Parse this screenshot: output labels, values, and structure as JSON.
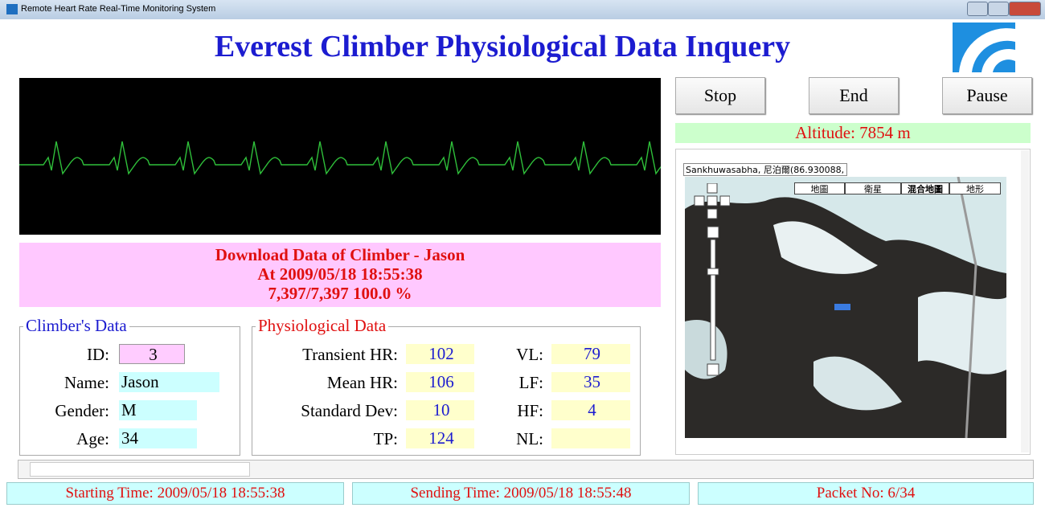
{
  "window": {
    "title": "Remote Heart Rate Real-Time Monitoring System"
  },
  "header": {
    "title": "Everest Climber Physiological Data Inquery"
  },
  "buttons": [
    "Stop",
    "End",
    "Pause"
  ],
  "altitude": "Altitude: 7854 m",
  "download": {
    "lines": [
      "Download Data of Climber - Jason",
      "At 2009/05/18 18:55:38",
      "7,397/7,397 100.0 %"
    ]
  },
  "climber": {
    "title": "Climber's Data",
    "fields": [
      {
        "label": "ID:",
        "value": 3
      },
      {
        "label": "Name:",
        "value": "Jason"
      },
      {
        "label": "Gender:",
        "value": "M"
      },
      {
        "label": "Age:",
        "value": 34
      }
    ]
  },
  "physiological": {
    "title": "Physiological Data",
    "left": [
      {
        "label": "Transient HR:",
        "value": 102
      },
      {
        "label": "Mean HR:",
        "value": 106
      },
      {
        "label": "Standard Dev:",
        "value": 10
      },
      {
        "label": "TP:",
        "value": 124
      }
    ],
    "right": [
      {
        "label": "VL:",
        "value": 79
      },
      {
        "label": "LF:",
        "value": 35
      },
      {
        "label": "HF:",
        "value": 4
      },
      {
        "label": "NL:"
      }
    ]
  },
  "map": {
    "location": "Sankhuwasabha, 尼泊爾(86.930088,",
    "tabs": [
      "地圖",
      "衛星",
      "混合地圖",
      "地形"
    ]
  },
  "status": [
    "Starting Time: 2009/05/18 18:55:38",
    "Sending Time: 2009/05/18 18:55:48",
    "Packet No: 6/34"
  ]
}
